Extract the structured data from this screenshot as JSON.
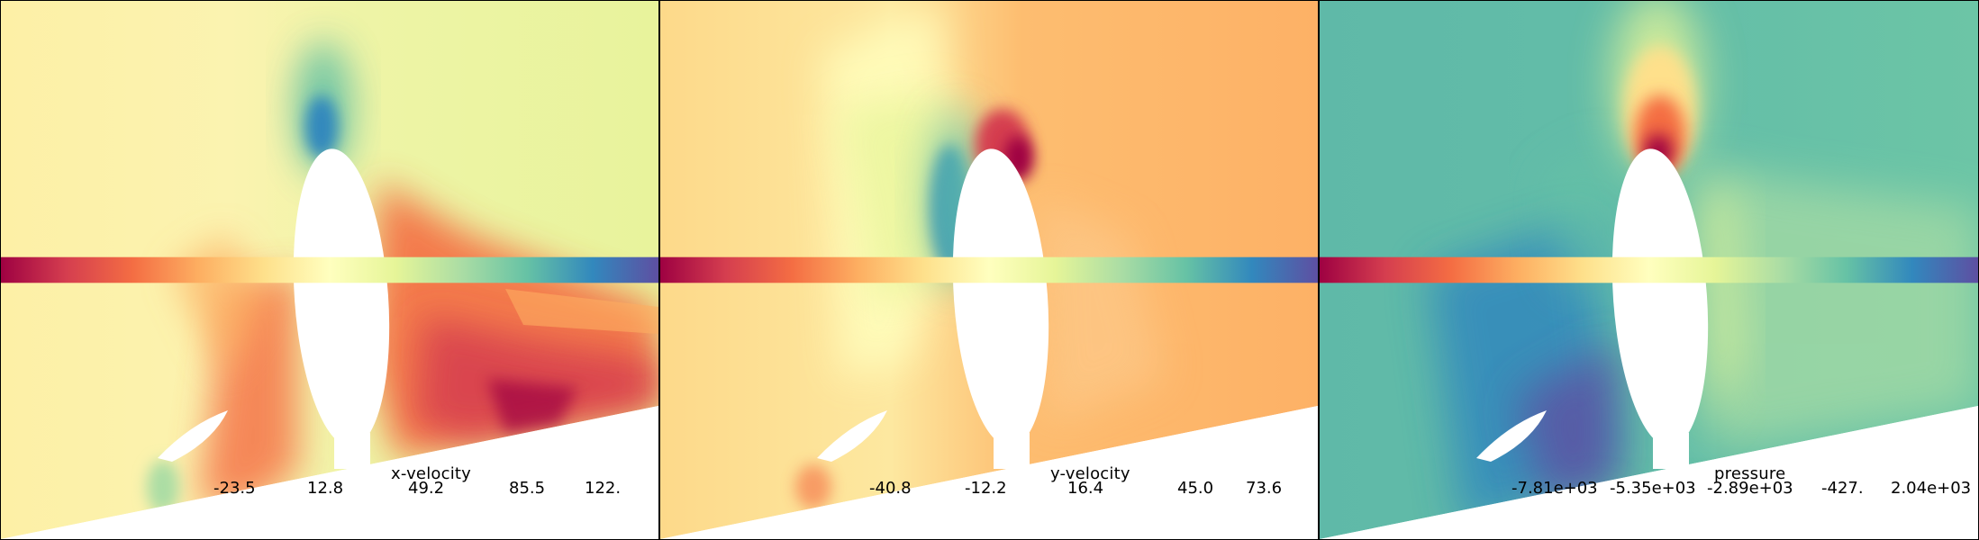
{
  "panels": [
    {
      "title": "x-velocity",
      "ticks": [
        "-23.5",
        "12.8",
        "49.2",
        "85.5",
        "122."
      ]
    },
    {
      "title": "y-velocity",
      "ticks": [
        "-40.8",
        "-12.2",
        "16.4",
        "45.0",
        "73.6"
      ]
    },
    {
      "title": "pressure",
      "ticks": [
        "-7.81e+03",
        "-5.35e+03",
        "-2.89e+03",
        "-427.",
        "2.04e+03"
      ]
    }
  ],
  "colormap": [
    "#9e0142",
    "#d53e4f",
    "#f46d43",
    "#fdae61",
    "#fee08b",
    "#ffffbf",
    "#e6f598",
    "#abdda4",
    "#66c2a5",
    "#3288bd",
    "#5e4fa2"
  ]
}
